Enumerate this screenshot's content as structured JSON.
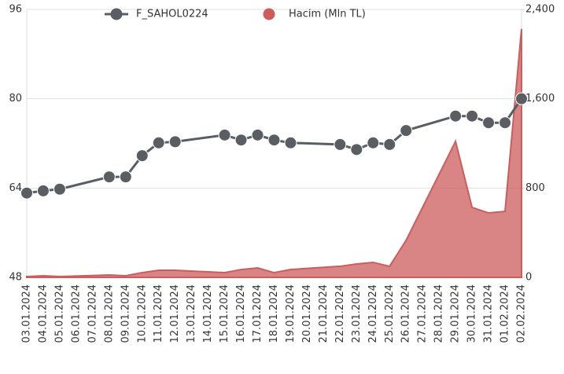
{
  "chart_data": {
    "type": "line-area",
    "categories": [
      "03.01.2024",
      "04.01.2024",
      "05.01.2024",
      "06.01.2024",
      "07.01.2024",
      "08.01.2024",
      "09.01.2024",
      "10.01.2024",
      "11.01.2024",
      "12.01.2024",
      "13.01.2024",
      "14.01.2024",
      "15.01.2024",
      "16.01.2024",
      "17.01.2024",
      "18.01.2024",
      "19.01.2024",
      "20.01.2024",
      "21.01.2024",
      "22.01.2024",
      "23.01.2024",
      "24.01.2024",
      "25.01.2024",
      "26.01.2024",
      "27.01.2024",
      "28.01.2024",
      "29.01.2024",
      "30.01.2024",
      "31.01.2024",
      "01.02.2024",
      "02.02.2024"
    ],
    "series": [
      {
        "name": "F_SAHOL0224",
        "color": "#5a5e63",
        "kind": "line",
        "x": [
          "03.01.2024",
          "04.01.2024",
          "05.01.2024",
          "08.01.2024",
          "09.01.2024",
          "10.01.2024",
          "11.01.2024",
          "12.01.2024",
          "15.01.2024",
          "16.01.2024",
          "17.01.2024",
          "18.01.2024",
          "19.01.2024",
          "22.01.2024",
          "23.01.2024",
          "24.01.2024",
          "25.01.2024",
          "26.01.2024",
          "29.01.2024",
          "30.01.2024",
          "31.01.2024",
          "01.02.2024",
          "02.02.2024"
        ],
        "values": [
          63.1,
          63.5,
          63.8,
          66.0,
          66.0,
          69.8,
          72.1,
          72.3,
          73.5,
          72.6,
          73.5,
          72.6,
          72.1,
          71.8,
          70.9,
          72.1,
          71.8,
          74.3,
          76.9,
          76.9,
          75.7,
          75.7,
          80.0
        ]
      },
      {
        "name": "Hacim (Mln TL)",
        "color": "#cd5c5c",
        "kind": "area",
        "axis": "y2",
        "x": [
          "03.01.2024",
          "04.01.2024",
          "05.01.2024",
          "08.01.2024",
          "09.01.2024",
          "10.01.2024",
          "11.01.2024",
          "12.01.2024",
          "15.01.2024",
          "16.01.2024",
          "17.01.2024",
          "18.01.2024",
          "19.01.2024",
          "22.01.2024",
          "23.01.2024",
          "24.01.2024",
          "25.01.2024",
          "26.01.2024",
          "29.01.2024",
          "30.01.2024",
          "31.01.2024",
          "01.02.2024",
          "02.02.2024"
        ],
        "values": [
          7,
          14,
          7,
          21,
          14,
          42,
          63,
          63,
          42,
          70,
          84,
          42,
          70,
          99,
          120,
          134,
          99,
          331,
          1218,
          627,
          577,
          591,
          2225
        ]
      }
    ],
    "ylim": [
      48,
      96
    ],
    "yticks": [
      48,
      64,
      80,
      96
    ],
    "y2lim": [
      0,
      2400
    ],
    "y2ticks": [
      0,
      800,
      {
        "value": 1600,
        "label": "1,600"
      },
      {
        "value": 2400,
        "label": "2,400"
      }
    ],
    "grid": true
  }
}
